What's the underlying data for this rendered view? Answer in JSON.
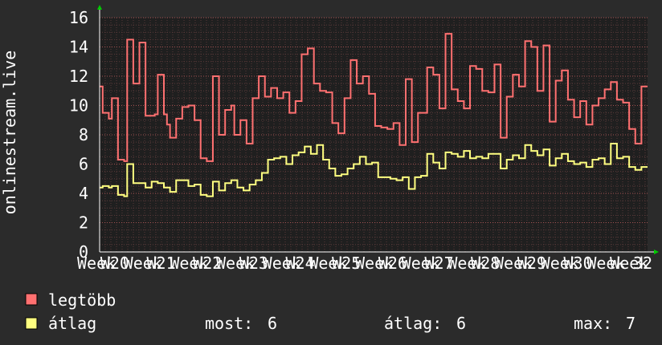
{
  "chart_data": {
    "type": "line",
    "ylabel": "onlinestream.live",
    "ylim": [
      0,
      16
    ],
    "yticks": [
      0,
      2,
      4,
      6,
      8,
      10,
      12,
      14,
      16
    ],
    "x_tick_labels": [
      "Week",
      "W20",
      "Week",
      "W21",
      "Week",
      "W22",
      "Week",
      "W23",
      "Week",
      "W24",
      "Week",
      "W25",
      "Week",
      "W26",
      "Week",
      "W27",
      "Week",
      "W28",
      "Week",
      "W29",
      "Week",
      "W30",
      "Week",
      "Week",
      "32"
    ],
    "grid": true,
    "series": [
      {
        "name": "legtöbb",
        "color": "#ff7070",
        "values": [
          11.3,
          9.5,
          9.5,
          9.1,
          10.5,
          10.5,
          6.3,
          6.3,
          6.2,
          14.5,
          14.5,
          11.5,
          11.5,
          14.3,
          14.3,
          9.3,
          9.3,
          9.3,
          9.4,
          12.1,
          12.1,
          9.4,
          8.7,
          7.8,
          7.8,
          9.1,
          9.1,
          9.9,
          9.9,
          10.0,
          10.0,
          9.0,
          9.0,
          6.4,
          6.4,
          6.2,
          6.2,
          12.0,
          12.0,
          8.0,
          8.0,
          9.7,
          9.7,
          10.0,
          8.0,
          8.0,
          9.0,
          9.0,
          7.4,
          7.4,
          10.5,
          10.5,
          12.0,
          12.0,
          10.6,
          10.6,
          11.2,
          11.2,
          10.5,
          10.5,
          10.9,
          10.9,
          9.5,
          9.5,
          10.3,
          10.3,
          13.5,
          13.5,
          13.9,
          13.9,
          11.5,
          11.5,
          11.0,
          11.0,
          10.9,
          10.9,
          8.8,
          8.8,
          8.1,
          8.1,
          10.5,
          10.5,
          13.1,
          13.1,
          11.5,
          11.5,
          12.0,
          12.0,
          10.8,
          10.8,
          8.6,
          8.6,
          8.5,
          8.5,
          8.4,
          8.4,
          8.8,
          8.8,
          7.3,
          7.3,
          11.8,
          11.8,
          7.5,
          7.5,
          9.5,
          9.5,
          9.5,
          12.6,
          12.6,
          12.1,
          12.1,
          9.8,
          9.8,
          14.9,
          14.9,
          11.1,
          11.1,
          10.3,
          10.3,
          9.8,
          9.8,
          12.7,
          12.7,
          12.5,
          12.5,
          11.0,
          11.0,
          10.9,
          10.9,
          12.8,
          12.8,
          7.8,
          7.8,
          10.6,
          10.6,
          12.1,
          12.1,
          11.3,
          11.3,
          14.4,
          14.4,
          14.0,
          14.0,
          11.0,
          11.0,
          14.1,
          14.1,
          8.9,
          8.9,
          11.7,
          11.7,
          12.4,
          12.4,
          10.4,
          10.4,
          9.2,
          9.2,
          10.3,
          10.3,
          8.7,
          8.7,
          10.0,
          10.0,
          10.5,
          10.5,
          11.1,
          11.1,
          11.6,
          11.6,
          10.4,
          10.4,
          10.2,
          10.2,
          8.4,
          8.4,
          7.4,
          7.4,
          11.3,
          11.3
        ]
      },
      {
        "name": "átlag",
        "color": "#ffff80",
        "values": [
          4.4,
          4.5,
          4.5,
          4.4,
          4.5,
          4.5,
          3.9,
          3.9,
          3.8,
          6.0,
          6.0,
          4.7,
          4.7,
          4.7,
          4.7,
          4.4,
          4.4,
          4.8,
          4.8,
          4.7,
          4.7,
          4.4,
          4.4,
          4.1,
          4.1,
          4.9,
          4.9,
          4.9,
          4.9,
          4.5,
          4.5,
          4.6,
          4.6,
          3.9,
          3.9,
          3.8,
          3.8,
          4.8,
          4.8,
          4.2,
          4.2,
          4.7,
          4.7,
          4.9,
          4.9,
          4.4,
          4.4,
          4.2,
          4.2,
          4.6,
          4.6,
          4.9,
          4.9,
          5.4,
          5.4,
          6.3,
          6.3,
          6.4,
          6.4,
          6.5,
          6.5,
          6.0,
          6.0,
          6.6,
          6.6,
          6.8,
          6.8,
          7.2,
          7.2,
          6.7,
          6.7,
          7.3,
          7.3,
          6.3,
          6.3,
          5.7,
          5.7,
          5.2,
          5.2,
          5.3,
          5.3,
          5.7,
          5.7,
          6.0,
          6.0,
          6.5,
          6.5,
          6.0,
          6.0,
          6.1,
          6.1,
          5.1,
          5.1,
          5.1,
          5.1,
          5.0,
          5.0,
          4.9,
          4.9,
          5.1,
          5.1,
          4.3,
          4.3,
          5.1,
          5.1,
          5.2,
          5.2,
          6.7,
          6.7,
          6.1,
          6.1,
          5.7,
          5.7,
          6.8,
          6.8,
          6.7,
          6.7,
          6.5,
          6.5,
          6.9,
          6.9,
          6.4,
          6.4,
          6.5,
          6.5,
          6.4,
          6.4,
          6.7,
          6.7,
          6.7,
          6.7,
          5.7,
          5.7,
          6.3,
          6.3,
          6.6,
          6.6,
          6.4,
          6.4,
          7.3,
          7.3,
          6.9,
          6.9,
          6.6,
          6.6,
          7.0,
          7.0,
          5.9,
          5.9,
          6.4,
          6.4,
          6.7,
          6.7,
          6.2,
          6.2,
          6.0,
          6.0,
          6.1,
          6.1,
          5.8,
          5.8,
          6.3,
          6.3,
          6.4,
          6.4,
          6.0,
          6.0,
          7.4,
          7.4,
          6.4,
          6.4,
          6.5,
          6.5,
          5.8,
          5.8,
          5.6,
          5.6,
          5.8,
          5.8
        ]
      }
    ],
    "legend_placement": "bottom-left",
    "stats": {
      "most_label": "most:",
      "most_value": "6",
      "avg_label": "átlag:",
      "avg_value": "6",
      "max_label": "max:",
      "max_value": "7"
    }
  }
}
